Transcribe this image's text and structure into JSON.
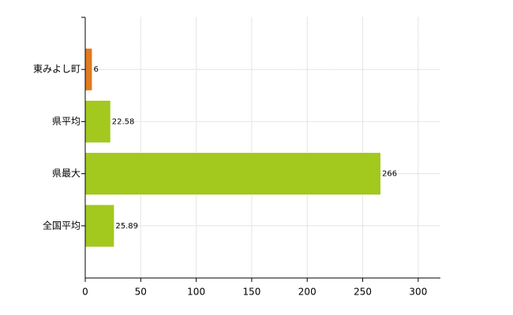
{
  "chart_data": {
    "type": "bar",
    "orientation": "horizontal",
    "categories": [
      "東みよし町",
      "県平均",
      "県最大",
      "全国平均"
    ],
    "values": [
      6,
      22.58,
      266,
      25.89
    ],
    "colors": [
      "#e07a20",
      "#a3c81e",
      "#a3c81e",
      "#a3c81e"
    ],
    "xlim": [
      0,
      320
    ],
    "xticks": [
      0,
      50,
      100,
      150,
      200,
      250,
      300
    ],
    "grid": true
  }
}
